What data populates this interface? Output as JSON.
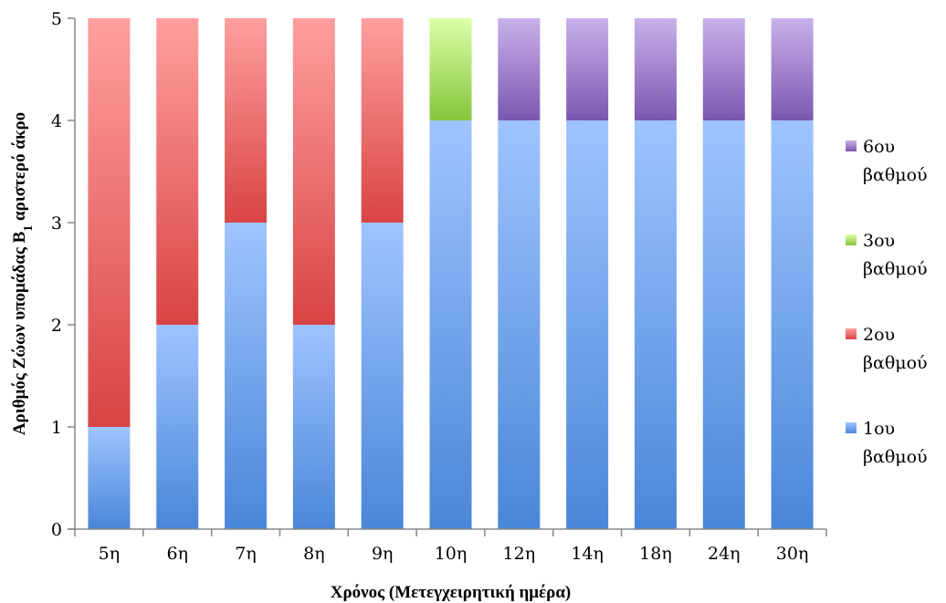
{
  "chart_data": {
    "type": "bar",
    "stacked": true,
    "categories": [
      "5η",
      "6η",
      "7η",
      "8η",
      "9η",
      "10η",
      "12η",
      "14η",
      "18η",
      "24η",
      "30η"
    ],
    "series": [
      {
        "name": "1ου βαθμού",
        "values": [
          1,
          2,
          3,
          2,
          3,
          4,
          4,
          4,
          4,
          4,
          4
        ],
        "color": "#4a86d8",
        "color_light": "#9fc4ff"
      },
      {
        "name": "2ου βαθμού",
        "values": [
          4,
          3,
          2,
          3,
          2,
          0,
          0,
          0,
          0,
          0,
          0
        ],
        "color": "#d84444",
        "color_light": "#ff9f9f"
      },
      {
        "name": "3ου βαθμού",
        "values": [
          0,
          0,
          0,
          0,
          0,
          1,
          0,
          0,
          0,
          0,
          0
        ],
        "color": "#86c53c",
        "color_light": "#dcffa8"
      },
      {
        "name": "6ου βαθμού",
        "values": [
          0,
          0,
          0,
          0,
          0,
          0,
          1,
          1,
          1,
          1,
          1
        ],
        "color": "#7b58b0",
        "color_light": "#c9b0ea"
      }
    ],
    "legend_entries": [
      {
        "line1": "6ου",
        "line2": "βαθμού",
        "series": 3
      },
      {
        "line1": "3ου",
        "line2": "βαθμού",
        "series": 2
      },
      {
        "line1": "2ου",
        "line2": "βαθμού",
        "series": 1
      },
      {
        "line1": "1ου",
        "line2": "βαθμού",
        "series": 0
      }
    ],
    "y_ticks": [
      "0",
      "1",
      "2",
      "3",
      "4",
      "5"
    ],
    "ylim": [
      0,
      5
    ],
    "xlabel": "Χρόνος (Μετεγχειρητική ημέρα)",
    "ylabel_main": "Αριθμός Ζώων υπομάδας Β",
    "ylabel_sub": "1",
    "ylabel_tail": " αριστερό άκρο",
    "grid": false,
    "legend_position": "right"
  }
}
